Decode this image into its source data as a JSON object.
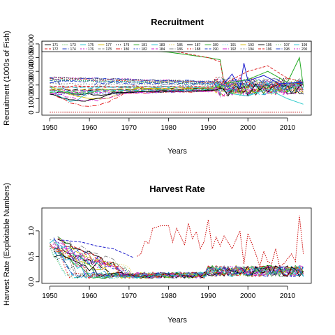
{
  "chart_data": [
    {
      "type": "line",
      "title": "Recruitment",
      "xlabel": "Years",
      "ylabel": "Recruitment (1000s of Fish)",
      "xlim": [
        1948,
        2016
      ],
      "ylim": [
        -2000,
        52000
      ],
      "xticks": [
        1950,
        1960,
        1970,
        1980,
        1990,
        2000,
        2010
      ],
      "yticks": [
        0,
        20000,
        40000
      ],
      "yticks_minor": [
        10000,
        30000,
        50000
      ],
      "ytick_labels": [
        "0",
        "20000",
        "40000"
      ],
      "ytick_minor_labels": [
        "10000",
        "30000",
        "50000"
      ],
      "legend": {
        "placement": "top",
        "entries": [
          "171",
          "172",
          "173",
          "174",
          "175",
          "176",
          "177",
          "178",
          "179",
          "180",
          "181",
          "182",
          "183",
          "184",
          "185",
          "186",
          "187",
          "188",
          "189",
          "190",
          "191",
          "192",
          "193",
          "194",
          "195",
          "196",
          "197",
          "198",
          "199",
          "200"
        ]
      },
      "series_count": 30,
      "highlight_series": [
        {
          "name": "green",
          "color": "#22aa22",
          "x": [
            1950,
            1960,
            1970,
            1980,
            1990,
            1993,
            1994,
            2000,
            2005,
            2010,
            2013,
            2014
          ],
          "y": [
            49000,
            48000,
            46000,
            44000,
            40000,
            38500,
            21000,
            24000,
            30000,
            22000,
            40000,
            19000
          ]
        },
        {
          "name": "red-dashed",
          "color": "#dd2222",
          "x": [
            1960,
            1970,
            1980,
            1990,
            1993,
            1994,
            2000,
            2005,
            2010,
            2014
          ],
          "y": [
            49500,
            48000,
            45500,
            40000,
            37000,
            21000,
            30000,
            34000,
            25000,
            22000
          ]
        },
        {
          "name": "red-dotted-low",
          "color": "#bb0000",
          "x": [
            1950,
            2014
          ],
          "y": [
            200,
            200
          ]
        },
        {
          "name": "blue",
          "color": "#1a1acc",
          "x": [
            1994,
            1996,
            1998,
            1999,
            2000,
            2004,
            2008,
            2014
          ],
          "y": [
            21000,
            28000,
            18000,
            36000,
            23000,
            27000,
            21000,
            22000
          ]
        },
        {
          "name": "cyan",
          "color": "#33cccc",
          "x": [
            1995,
            2000,
            2005,
            2010,
            2014
          ],
          "y": [
            14000,
            12000,
            17000,
            10000,
            6000
          ]
        }
      ]
    },
    {
      "type": "line",
      "title": "Harvest Rate",
      "xlabel": "Years",
      "ylabel": "Harvest Rate (Exploitable Numbers)",
      "xlim": [
        1948,
        2016
      ],
      "ylim": [
        -0.03,
        1.45
      ],
      "xticks": [
        1950,
        1960,
        1970,
        1980,
        1990,
        2000,
        2010
      ],
      "yticks": [
        0.0,
        0.5,
        1.0
      ],
      "ytick_labels": [
        "0.0",
        "0.5",
        "1.0"
      ],
      "series_count": 30,
      "highlight_series": [
        {
          "name": "red-dotted",
          "color": "#cc0000",
          "x": [
            1972,
            1973,
            1974,
            1975,
            1976,
            1978,
            1980,
            1981,
            1982,
            1983,
            1984,
            1985,
            1986,
            1987,
            1988,
            1989,
            1990,
            1991,
            1992,
            1993,
            1994,
            1996,
            1998,
            1999,
            2000,
            2001,
            2002,
            2003,
            2004,
            2005,
            2006,
            2007,
            2008,
            2009,
            2010,
            2011,
            2012,
            2013,
            2014
          ],
          "y": [
            0.5,
            0.55,
            0.8,
            0.75,
            1.05,
            1.1,
            1.1,
            0.78,
            1.05,
            0.9,
            0.72,
            1.15,
            0.85,
            0.98,
            0.65,
            0.8,
            1.22,
            0.65,
            0.88,
            0.7,
            0.9,
            0.65,
            1.0,
            0.35,
            0.95,
            0.75,
            0.55,
            0.3,
            0.6,
            0.4,
            0.35,
            0.65,
            0.3,
            0.35,
            0.45,
            0.55,
            0.4,
            1.3,
            0.55
          ]
        },
        {
          "name": "blue-dash",
          "color": "#1a1acc",
          "x": [
            1953,
            1958,
            1962,
            1966,
            1969,
            1971
          ],
          "y": [
            0.82,
            0.78,
            0.7,
            0.65,
            0.55,
            0.48
          ]
        }
      ]
    }
  ]
}
